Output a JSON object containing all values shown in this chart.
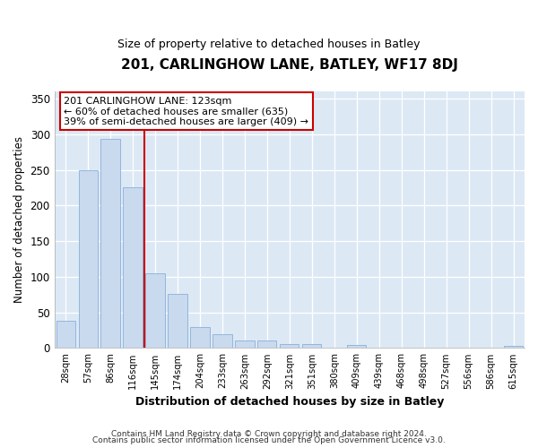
{
  "title1": "201, CARLINGHOW LANE, BATLEY, WF17 8DJ",
  "title2": "Size of property relative to detached houses in Batley",
  "xlabel": "Distribution of detached houses by size in Batley",
  "ylabel": "Number of detached properties",
  "categories": [
    "28sqm",
    "57sqm",
    "86sqm",
    "116sqm",
    "145sqm",
    "174sqm",
    "204sqm",
    "233sqm",
    "263sqm",
    "292sqm",
    "321sqm",
    "351sqm",
    "380sqm",
    "409sqm",
    "439sqm",
    "468sqm",
    "498sqm",
    "527sqm",
    "556sqm",
    "586sqm",
    "615sqm"
  ],
  "values": [
    38,
    250,
    293,
    226,
    105,
    76,
    29,
    19,
    10,
    10,
    6,
    5,
    0,
    4,
    0,
    0,
    0,
    0,
    0,
    0,
    3
  ],
  "bar_color": "#c9d9ee",
  "bar_edge_color": "#8ab0d8",
  "vline_color": "#cc0000",
  "annotation_text": "201 CARLINGHOW LANE: 123sqm\n← 60% of detached houses are smaller (635)\n39% of semi-detached houses are larger (409) →",
  "annotation_box_color": "#cc0000",
  "ylim": [
    0,
    360
  ],
  "yticks": [
    0,
    50,
    100,
    150,
    200,
    250,
    300,
    350
  ],
  "footer1": "Contains HM Land Registry data © Crown copyright and database right 2024.",
  "footer2": "Contains public sector information licensed under the Open Government Licence v3.0.",
  "fig_bg_color": "#ffffff",
  "plot_bg_color": "#dce9f5"
}
